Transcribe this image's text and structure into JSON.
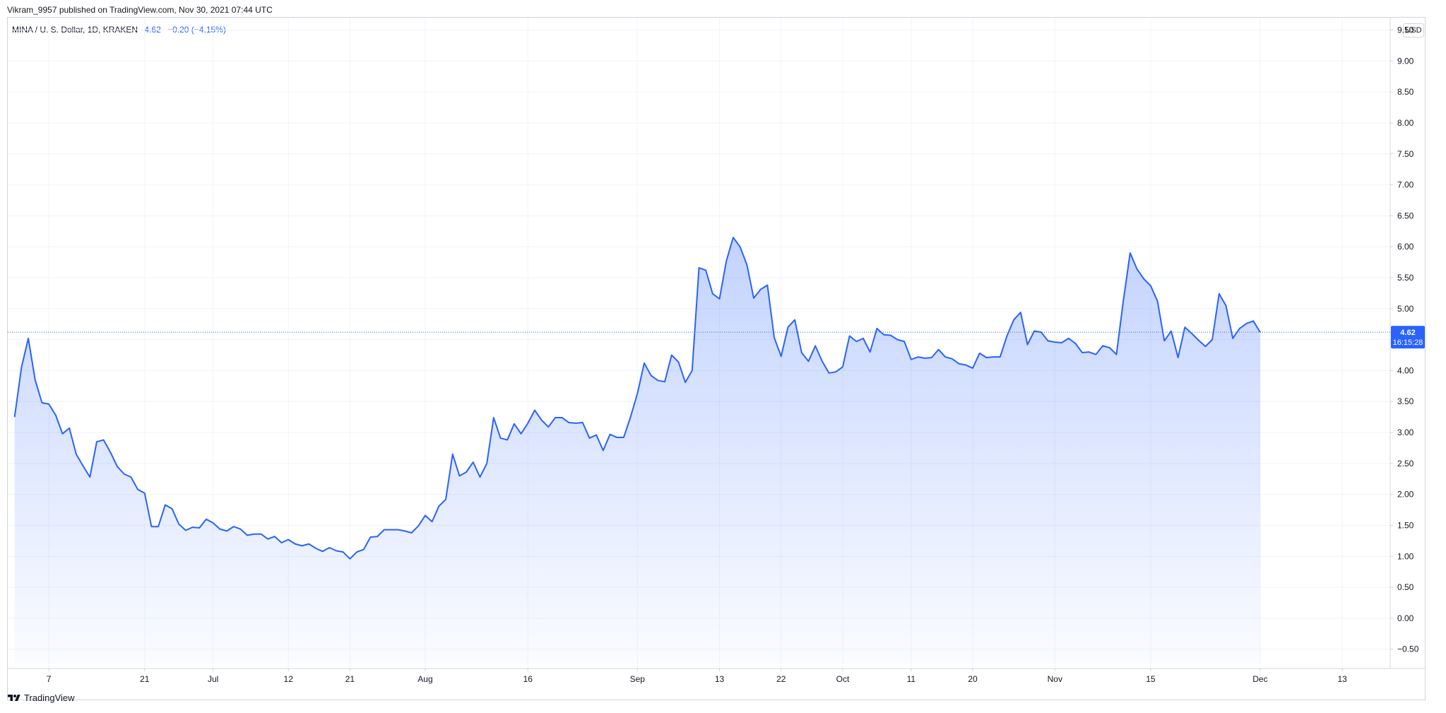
{
  "header": {
    "published": "Vikram_9957 published on TradingView.com, Nov 30, 2021 07:44 UTC"
  },
  "legend": {
    "symbol": "MINA / U. S. Dollar, 1D, KRAKEN",
    "last": "4.62",
    "change": "−0.20 (−4.15%)"
  },
  "axis": {
    "currency": "USD",
    "price_label": "4.62",
    "countdown": "16:15:28"
  },
  "footer": {
    "brand": "TradingView"
  },
  "colors": {
    "line": "#2962ff",
    "fill": "#2962ff",
    "grid": "#f0f3fa",
    "text": "#131722",
    "price_line": "#2962ff"
  },
  "chart_data": {
    "type": "area",
    "title": "MINA / U. S. Dollar, 1D, KRAKEN",
    "xlabel": "",
    "ylabel": "",
    "ylim": [
      -0.8,
      9.7
    ],
    "y_ticks": [
      "9.50",
      "9.00",
      "8.50",
      "8.00",
      "7.50",
      "7.00",
      "6.50",
      "6.00",
      "5.50",
      "5.00",
      "4.50",
      "4.00",
      "3.50",
      "3.00",
      "2.50",
      "2.00",
      "1.50",
      "1.00",
      "0.50",
      "0.00",
      "−0.50"
    ],
    "x_start": "2021-06-01",
    "x_end": "2021-12-20",
    "x_ticks": [
      {
        "date": "2021-06-07",
        "label": "7"
      },
      {
        "date": "2021-06-21",
        "label": "21"
      },
      {
        "date": "2021-07-01",
        "label": "Jul"
      },
      {
        "date": "2021-07-12",
        "label": "12"
      },
      {
        "date": "2021-07-21",
        "label": "21"
      },
      {
        "date": "2021-08-01",
        "label": "Aug"
      },
      {
        "date": "2021-08-16",
        "label": "16"
      },
      {
        "date": "2021-09-01",
        "label": "Sep"
      },
      {
        "date": "2021-09-13",
        "label": "13"
      },
      {
        "date": "2021-09-22",
        "label": "22"
      },
      {
        "date": "2021-10-01",
        "label": "Oct"
      },
      {
        "date": "2021-10-11",
        "label": "11"
      },
      {
        "date": "2021-10-20",
        "label": "20"
      },
      {
        "date": "2021-11-01",
        "label": "Nov"
      },
      {
        "date": "2021-11-15",
        "label": "15"
      },
      {
        "date": "2021-12-01",
        "label": "Dec"
      },
      {
        "date": "2021-12-13",
        "label": "13"
      }
    ],
    "grid": true,
    "last_value": 4.62,
    "series": [
      {
        "start_date": "2021-06-02",
        "interval": "1D",
        "values": [
          3.25,
          4.05,
          4.52,
          3.85,
          3.48,
          3.46,
          3.28,
          2.98,
          3.07,
          2.65,
          2.46,
          2.28,
          2.85,
          2.88,
          2.68,
          2.45,
          2.33,
          2.28,
          2.08,
          2.02,
          1.48,
          1.48,
          1.83,
          1.77,
          1.52,
          1.42,
          1.47,
          1.46,
          1.6,
          1.54,
          1.44,
          1.41,
          1.48,
          1.44,
          1.34,
          1.36,
          1.36,
          1.28,
          1.32,
          1.22,
          1.27,
          1.2,
          1.17,
          1.2,
          1.13,
          1.08,
          1.14,
          1.09,
          1.07,
          0.96,
          1.07,
          1.11,
          1.31,
          1.32,
          1.43,
          1.43,
          1.43,
          1.41,
          1.38,
          1.49,
          1.66,
          1.56,
          1.81,
          1.92,
          2.65,
          2.3,
          2.36,
          2.52,
          2.28,
          2.5,
          3.24,
          2.91,
          2.88,
          3.14,
          2.98,
          3.15,
          3.36,
          3.2,
          3.09,
          3.24,
          3.24,
          3.16,
          3.15,
          3.16,
          2.91,
          2.96,
          2.71,
          2.97,
          2.92,
          2.92,
          3.25,
          3.63,
          4.12,
          3.92,
          3.84,
          3.82,
          4.25,
          4.14,
          3.81,
          4.0,
          5.66,
          5.62,
          5.24,
          5.16,
          5.77,
          6.15,
          6.0,
          5.71,
          5.17,
          5.31,
          5.38,
          4.53,
          4.23,
          4.7,
          4.82,
          4.29,
          4.15,
          4.4,
          4.15,
          3.96,
          3.98,
          4.06,
          4.56,
          4.47,
          4.52,
          4.3,
          4.68,
          4.58,
          4.57,
          4.5,
          4.47,
          4.18,
          4.22,
          4.2,
          4.21,
          4.34,
          4.22,
          4.19,
          4.11,
          4.09,
          4.04,
          4.28,
          4.21,
          4.22,
          4.22,
          4.56,
          4.82,
          4.94,
          4.42,
          4.64,
          4.62,
          4.48,
          4.46,
          4.45,
          4.52,
          4.44,
          4.29,
          4.3,
          4.26,
          4.4,
          4.37,
          4.26,
          5.12,
          5.9,
          5.64,
          5.48,
          5.37,
          5.12,
          4.48,
          4.64,
          4.21,
          4.7,
          4.6,
          4.49,
          4.39,
          4.5,
          5.24,
          5.05,
          4.52,
          4.68,
          4.76,
          4.8,
          4.62
        ]
      }
    ]
  }
}
